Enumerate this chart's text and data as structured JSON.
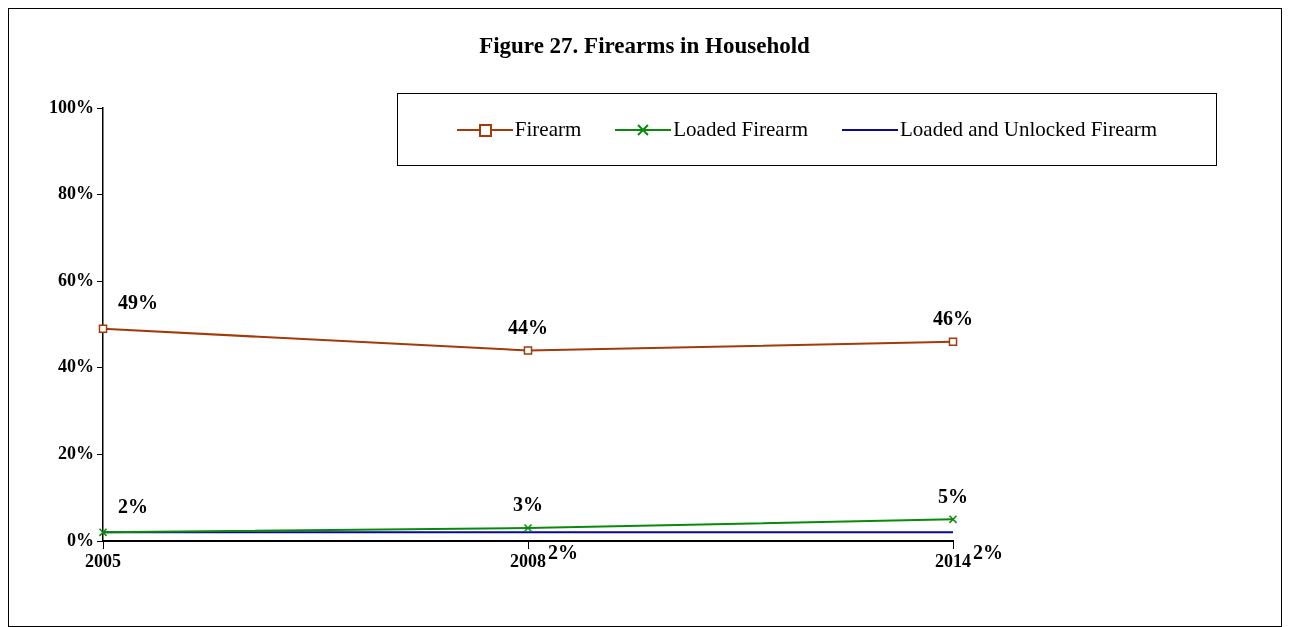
{
  "chart_data": {
    "type": "line",
    "title": "Figure 27.  Firearms in Household",
    "categories": [
      "2005",
      "2008",
      "2014"
    ],
    "series": [
      {
        "name": "Firearm",
        "color": "#a33a0a",
        "marker": "square",
        "values": [
          49,
          44,
          46
        ],
        "value_labels": [
          "49%",
          "44%",
          "46%"
        ]
      },
      {
        "name": "Loaded Firearm",
        "color": "#0a8a0a",
        "marker": "cross",
        "values": [
          2,
          3,
          5
        ],
        "value_labels": [
          "2%",
          "3%",
          "5%"
        ]
      },
      {
        "name": "Loaded and Unlocked Firearm",
        "color": "#0a0a8a",
        "marker": "none",
        "values": [
          2,
          2,
          2
        ],
        "value_labels": [
          null,
          "2%",
          "2%"
        ]
      }
    ],
    "ylim": [
      0,
      100
    ],
    "yticks": [
      {
        "value": 0,
        "label": "0%"
      },
      {
        "value": 20,
        "label": "20%"
      },
      {
        "value": 40,
        "label": "40%"
      },
      {
        "value": 60,
        "label": "60%"
      },
      {
        "value": 80,
        "label": "80%"
      },
      {
        "value": 100,
        "label": "100%"
      }
    ],
    "grid": false,
    "legend": "top right",
    "line_style": "solid"
  }
}
